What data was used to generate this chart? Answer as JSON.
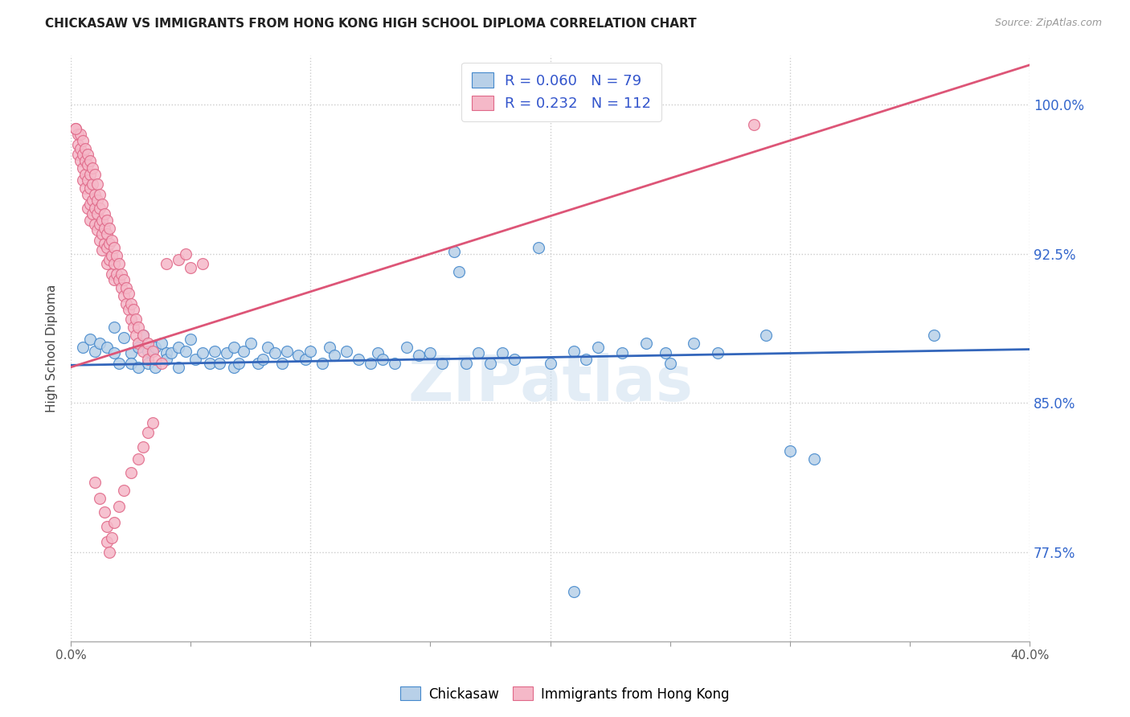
{
  "title": "CHICKASAW VS IMMIGRANTS FROM HONG KONG HIGH SCHOOL DIPLOMA CORRELATION CHART",
  "source": "Source: ZipAtlas.com",
  "ylabel": "High School Diploma",
  "ytick_labels": [
    "77.5%",
    "85.0%",
    "92.5%",
    "100.0%"
  ],
  "ytick_values": [
    0.775,
    0.85,
    0.925,
    1.0
  ],
  "xlim": [
    0.0,
    0.4
  ],
  "ylim": [
    0.73,
    1.025
  ],
  "legend_blue_r": "0.060",
  "legend_blue_n": "79",
  "legend_pink_r": "0.232",
  "legend_pink_n": "112",
  "watermark": "ZIPatlas",
  "blue_fill": "#b8d0e8",
  "pink_fill": "#f5b8c8",
  "blue_edge": "#4488cc",
  "pink_edge": "#e06888",
  "blue_line": "#3366bb",
  "pink_line": "#dd5577",
  "blue_scatter": [
    [
      0.005,
      0.878
    ],
    [
      0.008,
      0.882
    ],
    [
      0.01,
      0.876
    ],
    [
      0.012,
      0.88
    ],
    [
      0.015,
      0.878
    ],
    [
      0.018,
      0.875
    ],
    [
      0.018,
      0.888
    ],
    [
      0.02,
      0.87
    ],
    [
      0.022,
      0.883
    ],
    [
      0.025,
      0.875
    ],
    [
      0.025,
      0.87
    ],
    [
      0.028,
      0.878
    ],
    [
      0.028,
      0.868
    ],
    [
      0.03,
      0.884
    ],
    [
      0.032,
      0.876
    ],
    [
      0.032,
      0.87
    ],
    [
      0.035,
      0.878
    ],
    [
      0.035,
      0.868
    ],
    [
      0.038,
      0.88
    ],
    [
      0.04,
      0.875
    ],
    [
      0.04,
      0.872
    ],
    [
      0.042,
      0.875
    ],
    [
      0.045,
      0.878
    ],
    [
      0.045,
      0.868
    ],
    [
      0.048,
      0.876
    ],
    [
      0.05,
      0.882
    ],
    [
      0.052,
      0.872
    ],
    [
      0.055,
      0.875
    ],
    [
      0.058,
      0.87
    ],
    [
      0.06,
      0.876
    ],
    [
      0.062,
      0.87
    ],
    [
      0.065,
      0.875
    ],
    [
      0.068,
      0.868
    ],
    [
      0.068,
      0.878
    ],
    [
      0.07,
      0.87
    ],
    [
      0.072,
      0.876
    ],
    [
      0.075,
      0.88
    ],
    [
      0.078,
      0.87
    ],
    [
      0.08,
      0.872
    ],
    [
      0.082,
      0.878
    ],
    [
      0.085,
      0.875
    ],
    [
      0.088,
      0.87
    ],
    [
      0.09,
      0.876
    ],
    [
      0.095,
      0.874
    ],
    [
      0.098,
      0.872
    ],
    [
      0.1,
      0.876
    ],
    [
      0.105,
      0.87
    ],
    [
      0.108,
      0.878
    ],
    [
      0.11,
      0.874
    ],
    [
      0.115,
      0.876
    ],
    [
      0.12,
      0.872
    ],
    [
      0.125,
      0.87
    ],
    [
      0.128,
      0.875
    ],
    [
      0.13,
      0.872
    ],
    [
      0.135,
      0.87
    ],
    [
      0.14,
      0.878
    ],
    [
      0.145,
      0.874
    ],
    [
      0.15,
      0.875
    ],
    [
      0.155,
      0.87
    ],
    [
      0.16,
      0.926
    ],
    [
      0.162,
      0.916
    ],
    [
      0.165,
      0.87
    ],
    [
      0.17,
      0.875
    ],
    [
      0.175,
      0.87
    ],
    [
      0.18,
      0.875
    ],
    [
      0.185,
      0.872
    ],
    [
      0.195,
      0.928
    ],
    [
      0.2,
      0.87
    ],
    [
      0.21,
      0.876
    ],
    [
      0.215,
      0.872
    ],
    [
      0.22,
      0.878
    ],
    [
      0.23,
      0.875
    ],
    [
      0.24,
      0.88
    ],
    [
      0.248,
      0.875
    ],
    [
      0.25,
      0.87
    ],
    [
      0.26,
      0.88
    ],
    [
      0.27,
      0.875
    ],
    [
      0.29,
      0.884
    ],
    [
      0.3,
      0.826
    ],
    [
      0.31,
      0.822
    ],
    [
      0.36,
      0.884
    ],
    [
      0.21,
      0.755
    ]
  ],
  "pink_scatter": [
    [
      0.002,
      0.988
    ],
    [
      0.003,
      0.985
    ],
    [
      0.003,
      0.98
    ],
    [
      0.003,
      0.975
    ],
    [
      0.004,
      0.985
    ],
    [
      0.004,
      0.978
    ],
    [
      0.004,
      0.972
    ],
    [
      0.005,
      0.982
    ],
    [
      0.005,
      0.975
    ],
    [
      0.005,
      0.968
    ],
    [
      0.005,
      0.962
    ],
    [
      0.006,
      0.978
    ],
    [
      0.006,
      0.972
    ],
    [
      0.006,
      0.965
    ],
    [
      0.006,
      0.958
    ],
    [
      0.007,
      0.975
    ],
    [
      0.007,
      0.97
    ],
    [
      0.007,
      0.962
    ],
    [
      0.007,
      0.955
    ],
    [
      0.007,
      0.948
    ],
    [
      0.008,
      0.972
    ],
    [
      0.008,
      0.965
    ],
    [
      0.008,
      0.958
    ],
    [
      0.008,
      0.95
    ],
    [
      0.008,
      0.942
    ],
    [
      0.009,
      0.968
    ],
    [
      0.009,
      0.96
    ],
    [
      0.009,
      0.952
    ],
    [
      0.009,
      0.945
    ],
    [
      0.01,
      0.965
    ],
    [
      0.01,
      0.955
    ],
    [
      0.01,
      0.948
    ],
    [
      0.01,
      0.94
    ],
    [
      0.011,
      0.96
    ],
    [
      0.011,
      0.952
    ],
    [
      0.011,
      0.945
    ],
    [
      0.011,
      0.937
    ],
    [
      0.012,
      0.955
    ],
    [
      0.012,
      0.948
    ],
    [
      0.012,
      0.94
    ],
    [
      0.012,
      0.932
    ],
    [
      0.013,
      0.95
    ],
    [
      0.013,
      0.942
    ],
    [
      0.013,
      0.935
    ],
    [
      0.013,
      0.927
    ],
    [
      0.014,
      0.945
    ],
    [
      0.014,
      0.938
    ],
    [
      0.014,
      0.93
    ],
    [
      0.015,
      0.942
    ],
    [
      0.015,
      0.935
    ],
    [
      0.015,
      0.928
    ],
    [
      0.015,
      0.92
    ],
    [
      0.016,
      0.938
    ],
    [
      0.016,
      0.93
    ],
    [
      0.016,
      0.922
    ],
    [
      0.017,
      0.932
    ],
    [
      0.017,
      0.924
    ],
    [
      0.017,
      0.915
    ],
    [
      0.018,
      0.928
    ],
    [
      0.018,
      0.92
    ],
    [
      0.018,
      0.912
    ],
    [
      0.019,
      0.924
    ],
    [
      0.019,
      0.915
    ],
    [
      0.02,
      0.92
    ],
    [
      0.02,
      0.912
    ],
    [
      0.021,
      0.915
    ],
    [
      0.021,
      0.908
    ],
    [
      0.022,
      0.912
    ],
    [
      0.022,
      0.904
    ],
    [
      0.023,
      0.908
    ],
    [
      0.023,
      0.9
    ],
    [
      0.024,
      0.905
    ],
    [
      0.024,
      0.897
    ],
    [
      0.025,
      0.9
    ],
    [
      0.025,
      0.892
    ],
    [
      0.026,
      0.897
    ],
    [
      0.026,
      0.888
    ],
    [
      0.027,
      0.892
    ],
    [
      0.027,
      0.884
    ],
    [
      0.028,
      0.888
    ],
    [
      0.028,
      0.88
    ],
    [
      0.03,
      0.884
    ],
    [
      0.03,
      0.876
    ],
    [
      0.032,
      0.88
    ],
    [
      0.032,
      0.872
    ],
    [
      0.034,
      0.876
    ],
    [
      0.035,
      0.872
    ],
    [
      0.038,
      0.87
    ],
    [
      0.01,
      0.81
    ],
    [
      0.012,
      0.802
    ],
    [
      0.014,
      0.795
    ],
    [
      0.015,
      0.788
    ],
    [
      0.015,
      0.78
    ],
    [
      0.016,
      0.775
    ],
    [
      0.017,
      0.782
    ],
    [
      0.018,
      0.79
    ],
    [
      0.02,
      0.798
    ],
    [
      0.022,
      0.806
    ],
    [
      0.025,
      0.815
    ],
    [
      0.028,
      0.822
    ],
    [
      0.03,
      0.828
    ],
    [
      0.032,
      0.835
    ],
    [
      0.034,
      0.84
    ],
    [
      0.002,
      0.988
    ],
    [
      0.04,
      0.92
    ],
    [
      0.045,
      0.922
    ],
    [
      0.048,
      0.925
    ],
    [
      0.05,
      0.918
    ],
    [
      0.055,
      0.92
    ],
    [
      0.285,
      0.99
    ]
  ]
}
